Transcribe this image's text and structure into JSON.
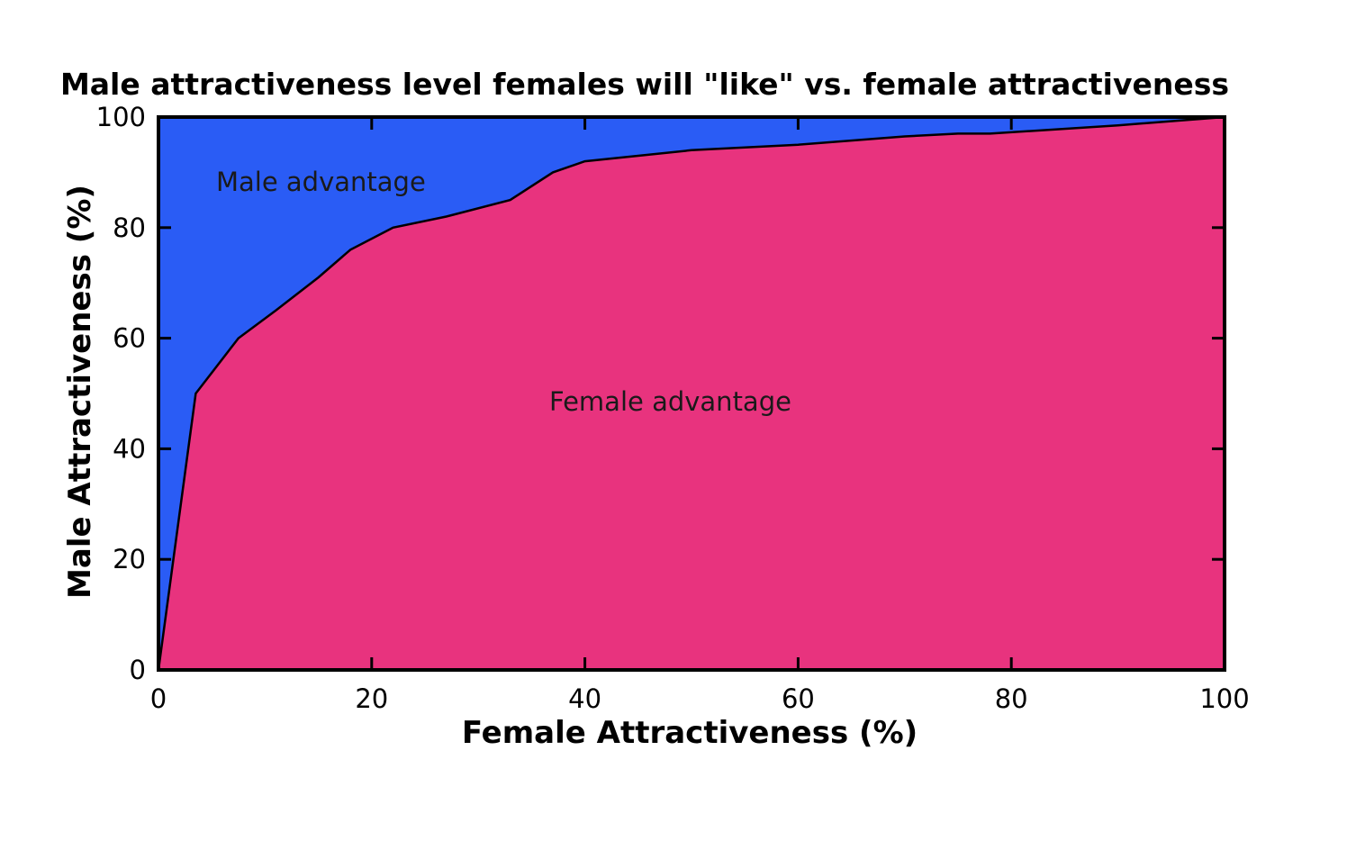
{
  "chart_data": {
    "type": "area",
    "title": "Male attractiveness level females will \"like\" vs. female attractiveness",
    "xlabel": "Female Attractiveness (%)",
    "ylabel": "Male Attractiveness (%)",
    "xlim": [
      0,
      100
    ],
    "ylim": [
      0,
      100
    ],
    "x_ticks": [
      0,
      20,
      40,
      60,
      80,
      100
    ],
    "y_ticks": [
      0,
      20,
      40,
      60,
      80,
      100
    ],
    "grid": false,
    "series": [
      {
        "x": [
          0,
          3.5,
          7.5,
          11,
          15,
          18,
          22,
          27,
          33,
          37,
          40,
          45,
          50,
          60,
          70,
          75,
          78,
          90,
          100
        ],
        "y": [
          0,
          50,
          60,
          65,
          71,
          76,
          80,
          82,
          85,
          90,
          92,
          93,
          94,
          95,
          96.5,
          97,
          97,
          98.5,
          100
        ]
      }
    ],
    "annotations": [
      "Male advantage",
      "Female advantage"
    ],
    "colors": {
      "upper_region": "#2a5cf5",
      "lower_region": "#e8337e",
      "line": "#000000"
    }
  }
}
